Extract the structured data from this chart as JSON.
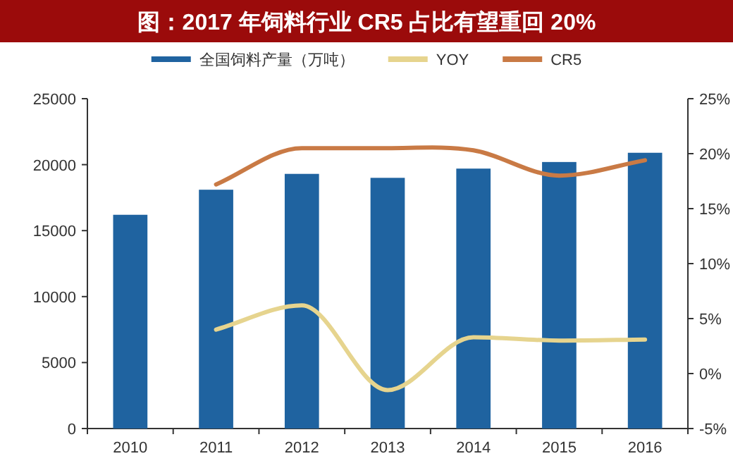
{
  "chart_data": {
    "type": "bar",
    "title": "图：2017 年饲料行业 CR5 占比有望重回 20%",
    "categories": [
      "2010",
      "2011",
      "2012",
      "2013",
      "2014",
      "2015",
      "2016"
    ],
    "series": [
      {
        "name": "全国饲料产量（万吨）",
        "color": "#1f63a0",
        "values": [
          16200,
          18100,
          19300,
          19000,
          19700,
          20200,
          20900
        ]
      },
      {
        "name": "YOY",
        "type": "line",
        "axis": "y2",
        "color": "#e6d48e",
        "values": [
          null,
          4.0,
          6.2,
          -1.5,
          3.3,
          3.0,
          3.1
        ]
      },
      {
        "name": "CR5",
        "type": "line",
        "axis": "y2",
        "color": "#c97a45",
        "values": [
          null,
          17.2,
          20.5,
          20.5,
          20.3,
          18.0,
          19.4
        ]
      }
    ],
    "ylim": [
      0,
      25000
    ],
    "yticks": [
      0,
      5000,
      10000,
      15000,
      20000,
      25000
    ],
    "y2lim": [
      -5,
      25
    ],
    "y2ticks": [
      {
        "value": -5,
        "label": "-5%"
      },
      {
        "value": 0,
        "label": "0%"
      },
      {
        "value": 5,
        "label": "5%"
      },
      {
        "value": 10,
        "label": "10%"
      },
      {
        "value": 15,
        "label": "15%"
      },
      {
        "value": 20,
        "label": "20%"
      },
      {
        "value": 25,
        "label": "25%"
      }
    ],
    "legend": "top",
    "grid": false
  }
}
